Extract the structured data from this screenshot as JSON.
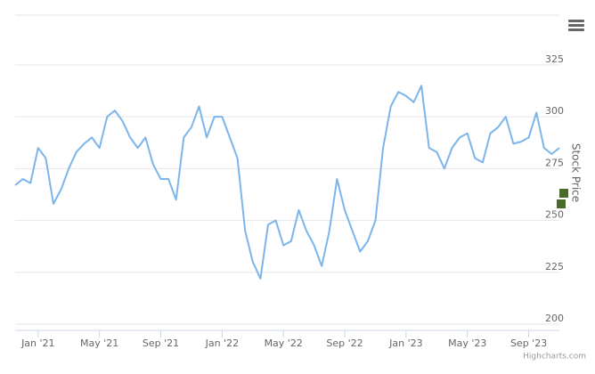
{
  "chart_data": {
    "type": "line",
    "y_axis_label": "Stock Price",
    "credits": "Highcharts.com",
    "categories": [
      null,
      null,
      null,
      "Jan '21",
      null,
      null,
      null,
      null,
      null,
      null,
      null,
      "May '21",
      null,
      null,
      null,
      null,
      null,
      null,
      null,
      "Sep '21",
      null,
      null,
      null,
      null,
      null,
      null,
      null,
      "Jan '22",
      null,
      null,
      null,
      null,
      null,
      null,
      null,
      "May '22",
      null,
      null,
      null,
      null,
      null,
      null,
      null,
      "Sep '22",
      null,
      null,
      null,
      null,
      null,
      null,
      null,
      "Jan '23",
      null,
      null,
      null,
      null,
      null,
      null,
      null,
      "May '23",
      null,
      null,
      null,
      null,
      null,
      null,
      null,
      "Sep '23",
      null,
      null,
      null,
      null
    ],
    "series": [
      {
        "color": "#7cb5ec",
        "values": [
          267,
          270,
          268,
          285,
          280,
          258,
          265,
          275,
          283,
          287,
          290,
          285,
          300,
          303,
          298,
          290,
          285,
          290,
          277,
          270,
          270,
          260,
          290,
          295,
          305,
          290,
          300,
          300,
          290,
          280,
          245,
          230,
          222,
          248,
          250,
          238,
          240,
          255,
          245,
          238,
          228,
          245,
          270,
          255,
          245,
          235,
          240,
          250,
          285,
          305,
          312,
          310,
          307,
          315,
          285,
          283,
          275,
          285,
          290,
          292,
          280,
          278,
          292,
          295,
          300,
          287,
          288,
          290,
          302,
          285,
          282,
          285
        ]
      }
    ],
    "ylim": [
      197,
      349
    ],
    "yticks": [
      200,
      225,
      250,
      275,
      300,
      325
    ],
    "grid": true
  }
}
